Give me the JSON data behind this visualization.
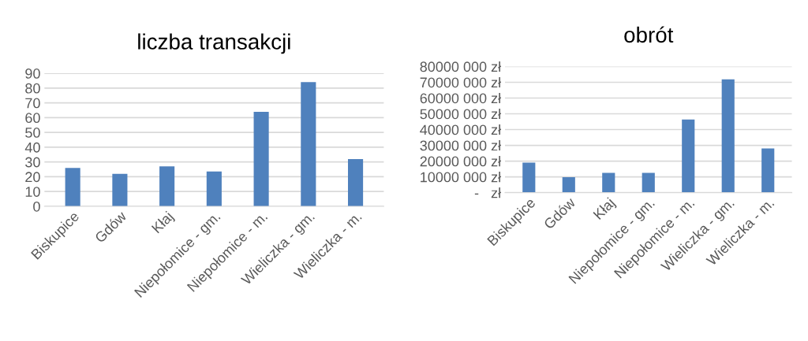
{
  "chart_data": [
    {
      "type": "bar",
      "title": "liczba transakcji",
      "categories": [
        "Biskupice",
        "Gdów",
        "Kłaj",
        "Niepołomice - gm.",
        "Niepołomice - m.",
        "Wieliczka - gm.",
        "Wieliczka - m."
      ],
      "values": [
        26,
        22,
        27,
        23.5,
        64,
        84,
        32
      ],
      "color": "#4f81bd",
      "ylim": [
        0,
        90
      ],
      "yticks": [
        0,
        10,
        20,
        30,
        40,
        50,
        60,
        70,
        80,
        90
      ],
      "grid": "y"
    },
    {
      "type": "bar",
      "title": "obrót",
      "categories": [
        "Biskupice",
        "Gdów",
        "Kłaj",
        "Niepołomice - gm.",
        "Niepołomice - m.",
        "Wieliczka - gm.",
        "Wieliczka - m."
      ],
      "values": [
        19000000,
        9800000,
        12500000,
        12500000,
        46400000,
        71800000,
        28000000
      ],
      "color": "#4f81bd",
      "ylim": [
        0,
        80000000
      ],
      "yticks": [
        {
          "value": 0,
          "label": "-   zł"
        },
        {
          "value": 10000000,
          "label": "10000 000 zł"
        },
        {
          "value": 20000000,
          "label": "20000 000 zł"
        },
        {
          "value": 30000000,
          "label": "30000 000 zł"
        },
        {
          "value": 40000000,
          "label": "40000 000 zł"
        },
        {
          "value": 50000000,
          "label": "50000 000 zł"
        },
        {
          "value": 60000000,
          "label": "60000 000 zł"
        },
        {
          "value": 70000000,
          "label": "70000 000 zł"
        },
        {
          "value": 80000000,
          "label": "80000 000 zł"
        }
      ],
      "grid": "y"
    }
  ]
}
